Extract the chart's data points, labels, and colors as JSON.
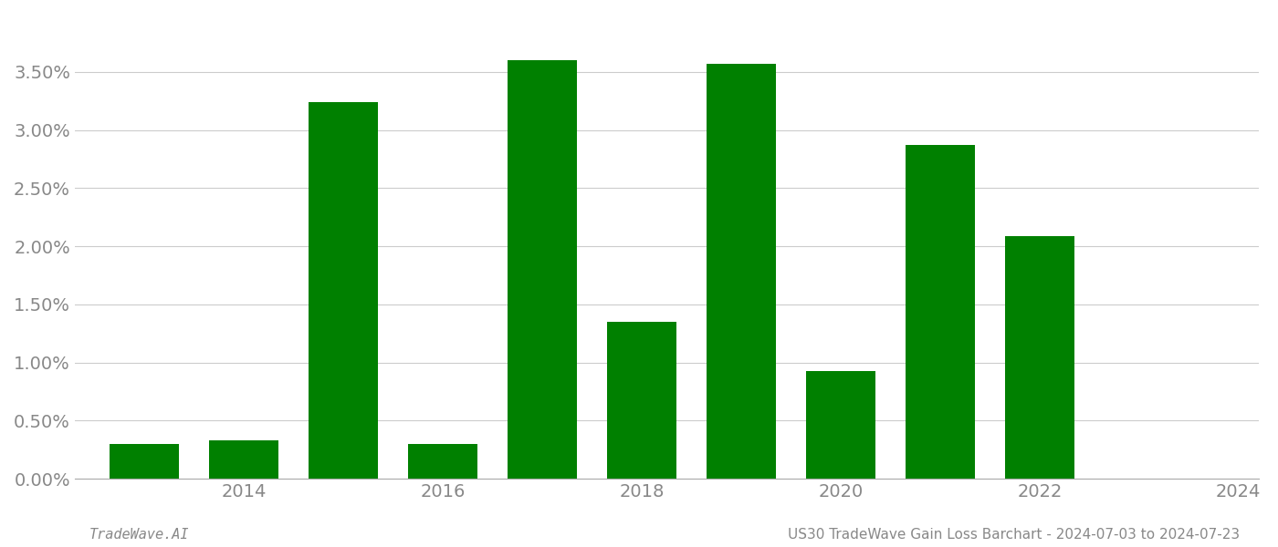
{
  "years": [
    2013,
    2014,
    2015,
    2016,
    2017,
    2018,
    2019,
    2020,
    2021,
    2022,
    2023
  ],
  "values": [
    0.003,
    0.0033,
    0.0324,
    0.003,
    0.036,
    0.0135,
    0.0357,
    0.0093,
    0.0287,
    0.0209,
    0.0
  ],
  "bar_color": "#008000",
  "background_color": "#ffffff",
  "grid_color": "#cccccc",
  "axis_color": "#aaaaaa",
  "tick_label_color": "#888888",
  "footer_left": "TradeWave.AI",
  "footer_right": "US30 TradeWave Gain Loss Barchart - 2024-07-03 to 2024-07-23",
  "footer_color": "#888888",
  "ylim": [
    0,
    0.04
  ],
  "yticks": [
    0.0,
    0.005,
    0.01,
    0.015,
    0.02,
    0.025,
    0.03,
    0.035
  ],
  "xtick_positions": [
    2014,
    2016,
    2018,
    2020,
    2022,
    2024
  ],
  "xtick_labels": [
    "2014",
    "2016",
    "2018",
    "2020",
    "2022",
    "2024"
  ],
  "bar_width": 0.7,
  "tick_fontsize": 14,
  "footer_fontsize": 11
}
